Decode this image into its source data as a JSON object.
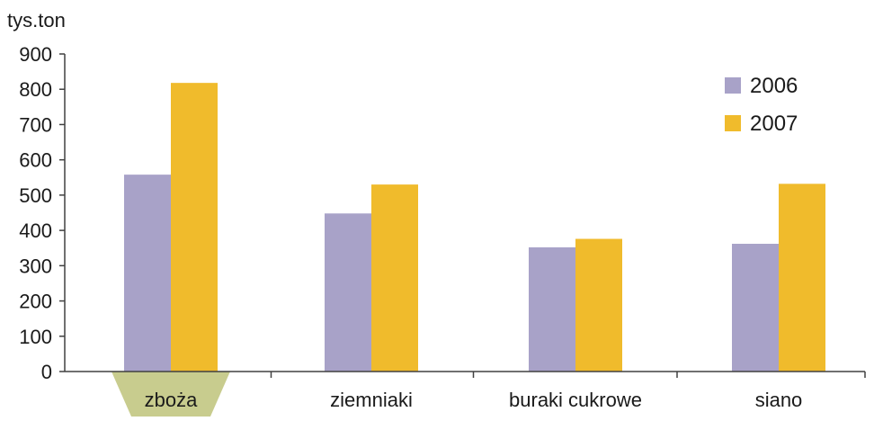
{
  "chart_data": {
    "type": "bar",
    "ylabel": "tys.ton",
    "categories": [
      "zboża",
      "ziemniaki",
      "buraki cukrowe",
      "siano"
    ],
    "highlighted_category": "zboża",
    "series": [
      {
        "name": "2006",
        "values": [
          558,
          448,
          352,
          362
        ]
      },
      {
        "name": "2007",
        "values": [
          818,
          530,
          376,
          532
        ]
      }
    ],
    "ylim": [
      0,
      900
    ],
    "yticks": [
      0,
      100,
      200,
      300,
      400,
      500,
      600,
      700,
      800,
      900
    ],
    "grid": false,
    "legend": "top-right",
    "colors": {
      "series": [
        "#a8a2c8",
        "#f0bb2c"
      ],
      "highlight": "#c8cc8e",
      "axis": "#404040"
    }
  }
}
